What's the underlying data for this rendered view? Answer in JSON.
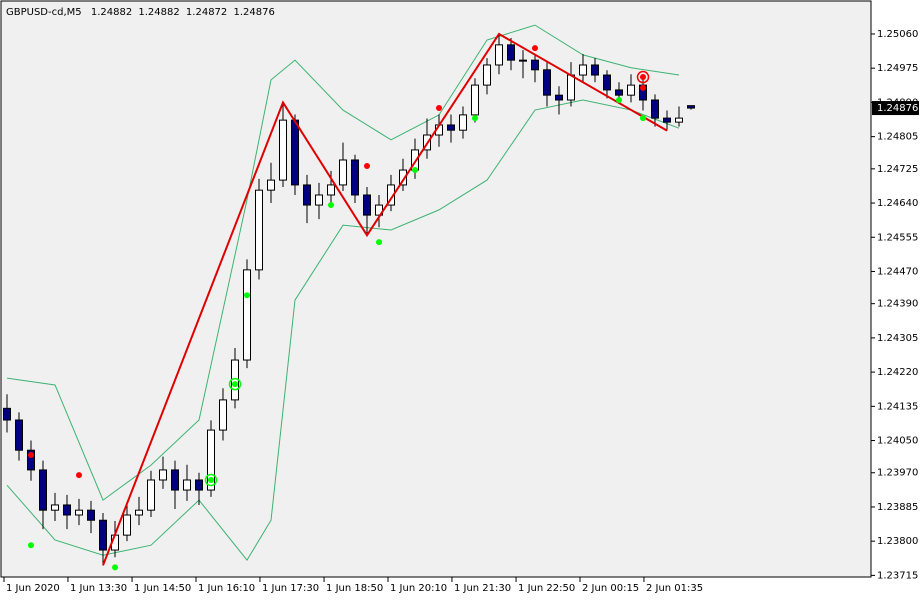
{
  "chart_data": {
    "type": "candlestick",
    "symbol": "GBPUSD-cd,M5",
    "xlim": [
      -0.5,
      72
    ],
    "ylim": [
      1.23711,
      1.25132
    ],
    "xticks": [
      {
        "value": -0.25,
        "label": "1 Jun 2020"
      },
      {
        "value": 5.08,
        "label": "1 Jun 13:30"
      },
      {
        "value": 10.42,
        "label": "1 Jun 14:50"
      },
      {
        "value": 15.75,
        "label": "1 Jun 16:10"
      },
      {
        "value": 21.08,
        "label": "1 Jun 17:30"
      },
      {
        "value": 26.42,
        "label": "1 Jun 18:50"
      },
      {
        "value": 31.75,
        "label": "1 Jun 20:10"
      },
      {
        "value": 37.08,
        "label": "1 Jun 21:30"
      },
      {
        "value": 42.42,
        "label": "1 Jun 22:50"
      },
      {
        "value": 47.75,
        "label": "2 Jun 00:15"
      },
      {
        "value": 53.08,
        "label": "2 Jun 01:35"
      }
    ],
    "yticks": [
      {
        "value": 1.2506,
        "label": "1.25060"
      },
      {
        "value": 1.24975,
        "label": "1.24975"
      },
      {
        "value": 1.2489,
        "label": "1.24890"
      },
      {
        "value": 1.24805,
        "label": "1.24805"
      },
      {
        "value": 1.24725,
        "label": "1.24725"
      },
      {
        "value": 1.2464,
        "label": "1.24640"
      },
      {
        "value": 1.24555,
        "label": "1.24555"
      },
      {
        "value": 1.2447,
        "label": "1.24470"
      },
      {
        "value": 1.2439,
        "label": "1.24390"
      },
      {
        "value": 1.24305,
        "label": "1.24305"
      },
      {
        "value": 1.2422,
        "label": "1.24220"
      },
      {
        "value": 1.24135,
        "label": "1.24135"
      },
      {
        "value": 1.2405,
        "label": "1.24050"
      },
      {
        "value": 1.2397,
        "label": "1.23970"
      },
      {
        "value": 1.23885,
        "label": "1.23885"
      },
      {
        "value": 1.238,
        "label": "1.23800"
      },
      {
        "value": 1.23715,
        "label": "1.23715"
      }
    ],
    "up_color": "#ffffff",
    "down_color": "#000080",
    "open": [
      1.2413,
      1.24101,
      1.24026,
      1.23977,
      1.23877,
      1.2389,
      1.23865,
      1.23877,
      1.23852,
      1.23778,
      1.23815,
      1.23865,
      1.23877,
      1.23952,
      1.23977,
      1.23927,
      1.23952,
      1.23927,
      1.24076,
      1.24151,
      1.2425,
      1.24474,
      1.24672,
      1.24697,
      1.24846,
      1.24685,
      1.24635,
      1.2466,
      1.24685,
      1.24747,
      1.2466,
      1.2461,
      1.24635,
      1.24685,
      1.24722,
      1.24772,
      1.24809,
      1.24834,
      1.24821,
      1.24859,
      1.24933,
      1.24983,
      1.25033,
      1.24995,
      1.24995,
      1.24971,
      1.24908,
      1.24896,
      1.24958,
      1.24983,
      1.24958,
      1.24921,
      1.24908,
      1.24933,
      1.24896,
      1.24851,
      1.24841,
      1.24882
    ],
    "high": [
      1.24165,
      1.2412,
      1.2405,
      1.24,
      1.2392,
      1.23915,
      1.23905,
      1.239,
      1.2387,
      1.2385,
      1.2389,
      1.2391,
      1.23975,
      1.2401,
      1.24,
      1.2399,
      1.2397,
      1.241,
      1.2418,
      1.2428,
      1.245,
      1.247,
      1.2474,
      1.2489,
      1.2486,
      1.2471,
      1.2469,
      1.2472,
      1.2479,
      1.2476,
      1.2468,
      1.2466,
      1.2471,
      1.2475,
      1.248,
      1.2485,
      1.2486,
      1.2486,
      1.2488,
      1.2495,
      1.25,
      1.2506,
      1.2505,
      1.2502,
      1.2501,
      1.2499,
      1.2493,
      1.2499,
      1.2501,
      1.25,
      1.2497,
      1.2494,
      1.2496,
      1.2495,
      1.2491,
      1.2487,
      1.2488,
      1.24882
    ],
    "low": [
      1.2407,
      1.24,
      1.2395,
      1.2383,
      1.2385,
      1.2383,
      1.2384,
      1.2382,
      1.2374,
      1.2376,
      1.238,
      1.2384,
      1.2386,
      1.2393,
      1.2388,
      1.239,
      1.2389,
      1.2391,
      1.2405,
      1.2413,
      1.2423,
      1.2445,
      1.2464,
      1.2468,
      1.2466,
      1.2459,
      1.246,
      1.2463,
      1.2467,
      1.2464,
      1.2456,
      1.2458,
      1.2462,
      1.2467,
      1.247,
      1.2475,
      1.2478,
      1.2479,
      1.248,
      1.2484,
      1.2491,
      1.2496,
      1.2497,
      1.2495,
      1.2494,
      1.2488,
      1.2486,
      1.2488,
      1.2494,
      1.2494,
      1.249,
      1.2489,
      1.2489,
      1.2487,
      1.2483,
      1.2482,
      1.2483,
      1.24872
    ],
    "close": [
      1.24101,
      1.24026,
      1.23977,
      1.23877,
      1.2389,
      1.23865,
      1.23877,
      1.23852,
      1.23778,
      1.23815,
      1.23865,
      1.23877,
      1.23952,
      1.23977,
      1.23927,
      1.23952,
      1.23927,
      1.24076,
      1.24151,
      1.2425,
      1.24474,
      1.24672,
      1.24697,
      1.24846,
      1.24685,
      1.24635,
      1.2466,
      1.24685,
      1.24747,
      1.2466,
      1.2461,
      1.24635,
      1.24685,
      1.24722,
      1.24772,
      1.24809,
      1.24834,
      1.24821,
      1.24859,
      1.24933,
      1.24983,
      1.25033,
      1.24995,
      1.24995,
      1.24971,
      1.24908,
      1.24896,
      1.24958,
      1.24983,
      1.24958,
      1.24921,
      1.24908,
      1.24933,
      1.24896,
      1.24851,
      1.24841,
      1.24851,
      1.24876
    ],
    "bands": {
      "color": "#3cb371",
      "x": [
        0,
        4,
        8,
        12,
        16,
        20,
        22,
        24,
        28,
        32,
        36,
        40,
        44,
        48,
        52,
        56
      ],
      "upper": [
        1.24205,
        1.24188,
        1.23902,
        1.23989,
        1.24101,
        1.24648,
        1.24946,
        1.24995,
        1.24871,
        1.24797,
        1.24859,
        1.25045,
        1.25082,
        1.25008,
        1.24976,
        1.24958
      ],
      "lower": [
        1.23939,
        1.23803,
        1.23765,
        1.2379,
        1.23902,
        1.23753,
        1.23852,
        1.24399,
        1.24585,
        1.24573,
        1.24623,
        1.24697,
        1.24871,
        1.24896,
        1.24871,
        1.24826
      ]
    },
    "zigzag": {
      "color": "#e00000",
      "x": [
        8,
        23,
        30,
        41,
        55
      ],
      "values": [
        1.2374,
        1.2489,
        1.2456,
        1.2506,
        1.2482
      ]
    },
    "sell_dots": {
      "color": "#ff0000",
      "x": [
        2,
        6,
        30,
        36,
        44,
        53
      ],
      "values": [
        1.24014,
        1.23964,
        1.24732,
        1.24876,
        1.25025,
        1.24926
      ]
    },
    "buy_dots": {
      "color": "#00ff00",
      "x": [
        2,
        9,
        20,
        27,
        31,
        34,
        39,
        51,
        53
      ],
      "values": [
        1.2379,
        1.23735,
        1.24411,
        1.24635,
        1.24543,
        1.24722,
        1.24851,
        1.24896,
        1.24851
      ]
    },
    "sell_circles": {
      "color": "#ff0000",
      "x": [
        53
      ],
      "values": [
        1.24953
      ]
    },
    "buy_circles": {
      "color": "#00ff00",
      "x": [
        17,
        19
      ],
      "values": [
        1.23952,
        1.2419
      ]
    }
  }
}
